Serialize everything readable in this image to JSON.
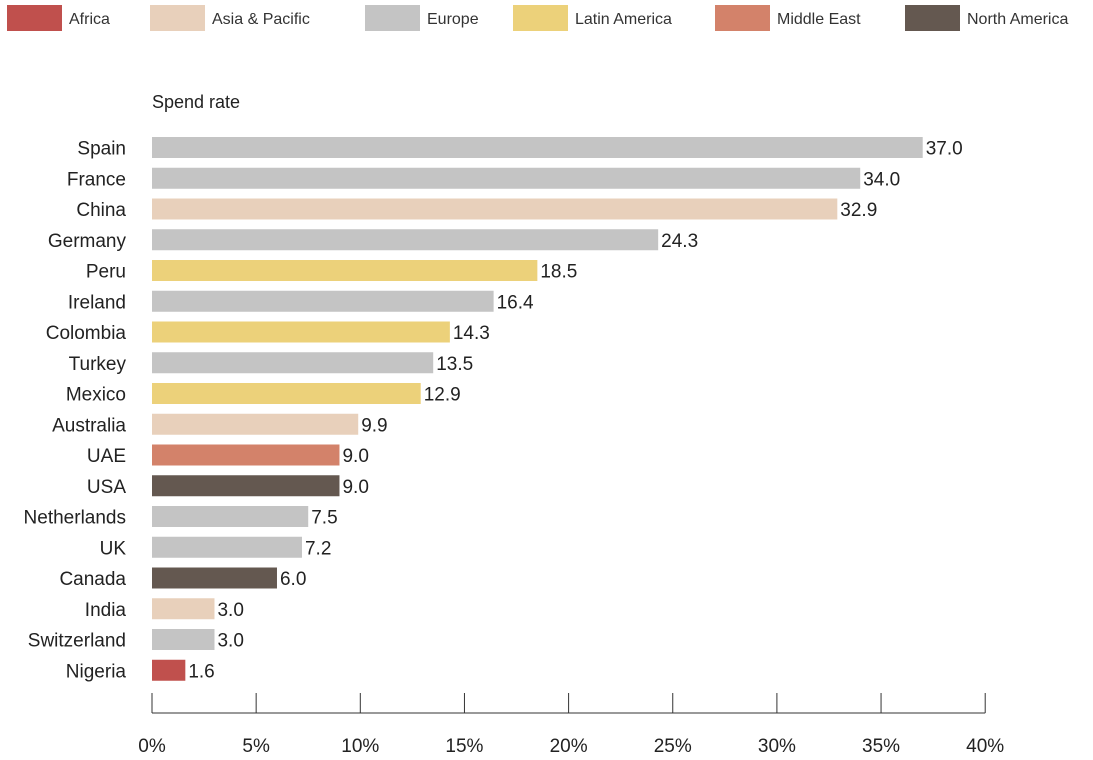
{
  "chart_data": {
    "type": "bar",
    "orientation": "horizontal",
    "title": "",
    "ylabel": "Spend rate",
    "xlabel": "",
    "xlim": [
      0,
      40
    ],
    "x_ticks": [
      0,
      5,
      10,
      15,
      20,
      25,
      30,
      35,
      40
    ],
    "tick_format": "{v}%",
    "grid": false,
    "legend_position": "top",
    "regions": [
      {
        "name": "Africa",
        "color": "#c0504d"
      },
      {
        "name": "Asia & Pacific",
        "color": "#e8d0bb"
      },
      {
        "name": "Europe",
        "color": "#c4c4c4"
      },
      {
        "name": "Latin America",
        "color": "#ecd17a"
      },
      {
        "name": "Middle East",
        "color": "#d3826a"
      },
      {
        "name": "North America",
        "color": "#645850"
      }
    ],
    "categories": [
      "Spain",
      "France",
      "China",
      "Germany",
      "Peru",
      "Ireland",
      "Colombia",
      "Turkey",
      "Mexico",
      "Australia",
      "UAE",
      "USA",
      "Netherlands",
      "UK",
      "Canada",
      "India",
      "Switzerland",
      "Nigeria"
    ],
    "values": [
      37.0,
      34.0,
      32.9,
      24.3,
      18.5,
      16.4,
      14.3,
      13.5,
      12.9,
      9.9,
      9.0,
      9.0,
      7.5,
      7.2,
      6.0,
      3.0,
      3.0,
      1.6
    ],
    "value_labels": [
      "37.0",
      "34.0",
      "32.9",
      "24.3",
      "18.5",
      "16.4",
      "14.3",
      "13.5",
      "12.9",
      "9.9",
      "9.0",
      "9.0",
      "7.5",
      "7.2",
      "6.0",
      "3.0",
      "3.0",
      "1.6"
    ],
    "bar_regions": [
      "Europe",
      "Europe",
      "Asia & Pacific",
      "Europe",
      "Latin America",
      "Europe",
      "Latin America",
      "Europe",
      "Latin America",
      "Asia & Pacific",
      "Middle East",
      "North America",
      "Europe",
      "Europe",
      "North America",
      "Asia & Pacific",
      "Europe",
      "Africa"
    ]
  }
}
